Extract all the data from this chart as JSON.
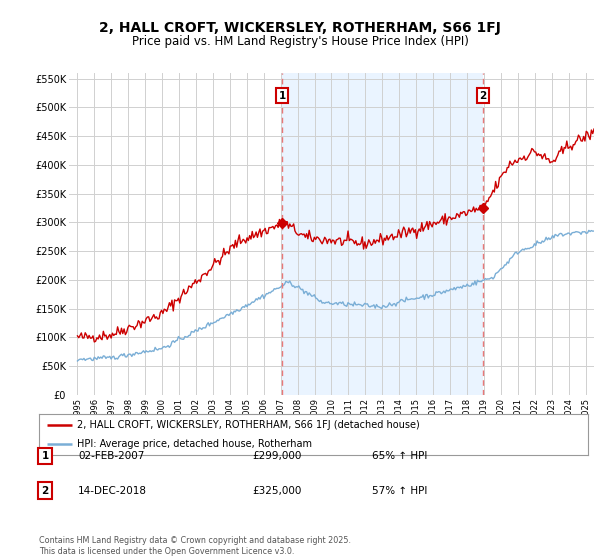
{
  "title": "2, HALL CROFT, WICKERSLEY, ROTHERHAM, S66 1FJ",
  "subtitle": "Price paid vs. HM Land Registry's House Price Index (HPI)",
  "title_fontsize": 10,
  "subtitle_fontsize": 8.5,
  "ylim": [
    0,
    560000
  ],
  "yticks": [
    0,
    50000,
    100000,
    150000,
    200000,
    250000,
    300000,
    350000,
    400000,
    450000,
    500000,
    550000
  ],
  "ytick_labels": [
    "£0",
    "£50K",
    "£100K",
    "£150K",
    "£200K",
    "£250K",
    "£300K",
    "£350K",
    "£400K",
    "£450K",
    "£500K",
    "£550K"
  ],
  "background_color": "#ffffff",
  "grid_color": "#d0d0d0",
  "red_line_color": "#cc0000",
  "blue_line_color": "#7aaed6",
  "vline_color": "#e87878",
  "shade_color": "#ddeeff",
  "annotation_box_color": "#cc0000",
  "sale1_x": 2007.08,
  "sale1_y": 299000,
  "sale1_label": "1",
  "sale1_date_str": "02-FEB-2007",
  "sale1_price": "£299,000",
  "sale1_hpi": "65% ↑ HPI",
  "sale2_x": 2018.95,
  "sale2_y": 325000,
  "sale2_label": "2",
  "sale2_date_str": "14-DEC-2018",
  "sale2_price": "£325,000",
  "sale2_hpi": "57% ↑ HPI",
  "legend1_label": "2, HALL CROFT, WICKERSLEY, ROTHERHAM, S66 1FJ (detached house)",
  "legend2_label": "HPI: Average price, detached house, Rotherham",
  "footer": "Contains HM Land Registry data © Crown copyright and database right 2025.\nThis data is licensed under the Open Government Licence v3.0.",
  "xlim_start": 1994.5,
  "xlim_end": 2025.5
}
